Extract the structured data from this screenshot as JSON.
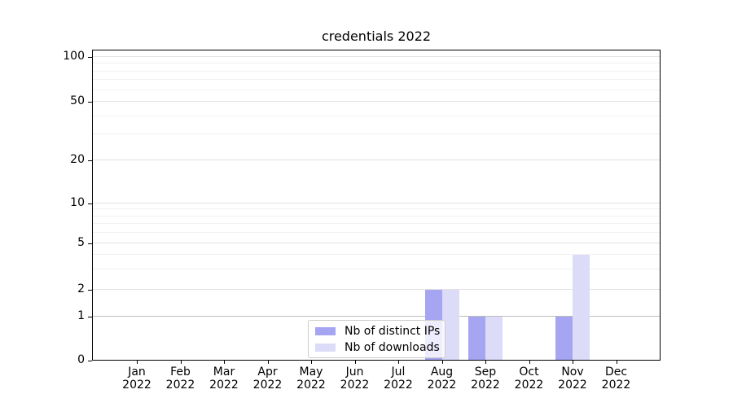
{
  "title": "credentials 2022",
  "chart_data": {
    "type": "bar",
    "title": "credentials 2022",
    "x_year": "2022",
    "categories": [
      "Jan",
      "Feb",
      "Mar",
      "Apr",
      "May",
      "Jun",
      "Jul",
      "Aug",
      "Sep",
      "Oct",
      "Nov",
      "Dec"
    ],
    "series": [
      {
        "name": "Nb of distinct IPs",
        "color": "#a5a5f2",
        "values": [
          0,
          0,
          0,
          0,
          0,
          0,
          0,
          2,
          1,
          0,
          1,
          0
        ]
      },
      {
        "name": "Nb of downloads",
        "color": "#dcdcf9",
        "values": [
          0,
          0,
          0,
          0,
          0,
          0,
          0,
          2,
          1,
          0,
          4,
          0
        ]
      }
    ],
    "yscale": "symlog",
    "ylim": [
      0,
      110
    ],
    "yticks": [
      0,
      1,
      2,
      5,
      10,
      20,
      50,
      100
    ],
    "ytick_labels": [
      "0",
      "1",
      "2",
      "5",
      "10",
      "20",
      "50",
      "100"
    ],
    "yminorticks": [
      3,
      4,
      6,
      7,
      8,
      9,
      30,
      40,
      60,
      70,
      80,
      90
    ],
    "grid": "horizontal major+minor",
    "legend": {
      "position": "lower center",
      "entries": [
        "Nb of distinct IPs",
        "Nb of downloads"
      ]
    }
  },
  "colors": {
    "bar_distinct_ips": "#a5a5f2",
    "bar_downloads": "#dcdcf9",
    "grid_major": "#e2e2e2",
    "grid_minor": "#f1f1f1",
    "grid_unit_line": "#bcbcbc",
    "axis": "#000000",
    "legend_border": "#cccccc"
  }
}
